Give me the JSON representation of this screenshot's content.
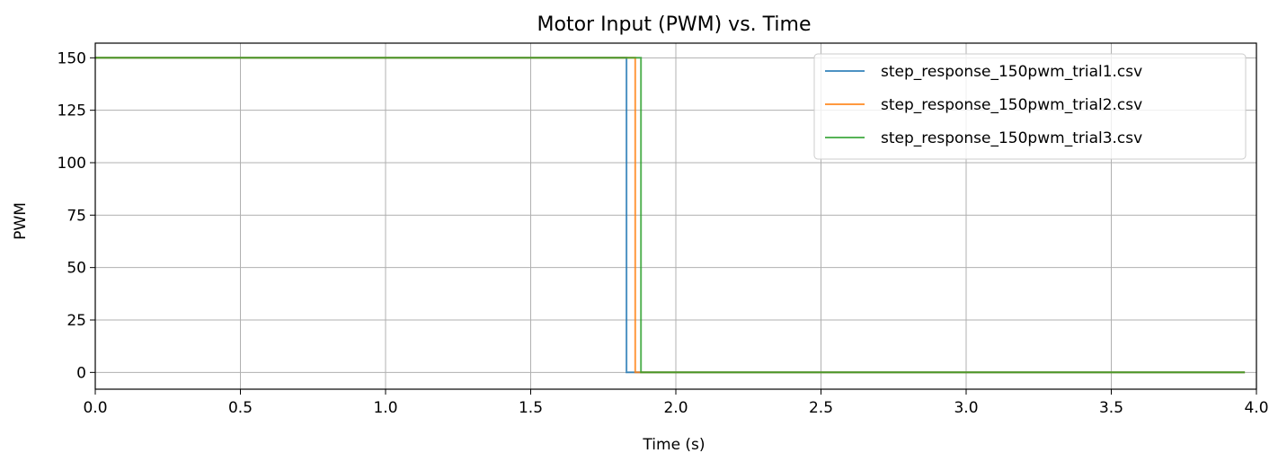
{
  "chart_data": {
    "type": "line",
    "title": "Motor Input (PWM) vs. Time",
    "xlabel": "Time (s)",
    "ylabel": "PWM",
    "xlim": [
      0.0,
      4.0
    ],
    "ylim": [
      -8,
      157
    ],
    "xticks": [
      0.0,
      0.5,
      1.0,
      1.5,
      2.0,
      2.5,
      3.0,
      3.5,
      4.0
    ],
    "xtick_labels": [
      "0.0",
      "0.5",
      "1.0",
      "1.5",
      "2.0",
      "2.5",
      "3.0",
      "3.5",
      "4.0"
    ],
    "yticks": [
      0,
      25,
      50,
      75,
      100,
      125,
      150
    ],
    "ytick_labels": [
      "0",
      "25",
      "50",
      "75",
      "100",
      "125",
      "150"
    ],
    "grid": true,
    "legend_position": "top-right",
    "series": [
      {
        "name": "step_response_150pwm_trial1.csv",
        "color": "#1f77b4",
        "x": [
          0.0,
          1.83,
          1.83,
          3.96
        ],
        "y": [
          150,
          150,
          0,
          0
        ]
      },
      {
        "name": "step_response_150pwm_trial2.csv",
        "color": "#ff7f0e",
        "x": [
          0.0,
          1.86,
          1.86,
          3.96
        ],
        "y": [
          150,
          150,
          0,
          0
        ]
      },
      {
        "name": "step_response_150pwm_trial3.csv",
        "color": "#2ca02c",
        "x": [
          0.0,
          1.88,
          1.88,
          3.96
        ],
        "y": [
          150,
          150,
          0,
          0
        ]
      }
    ]
  }
}
